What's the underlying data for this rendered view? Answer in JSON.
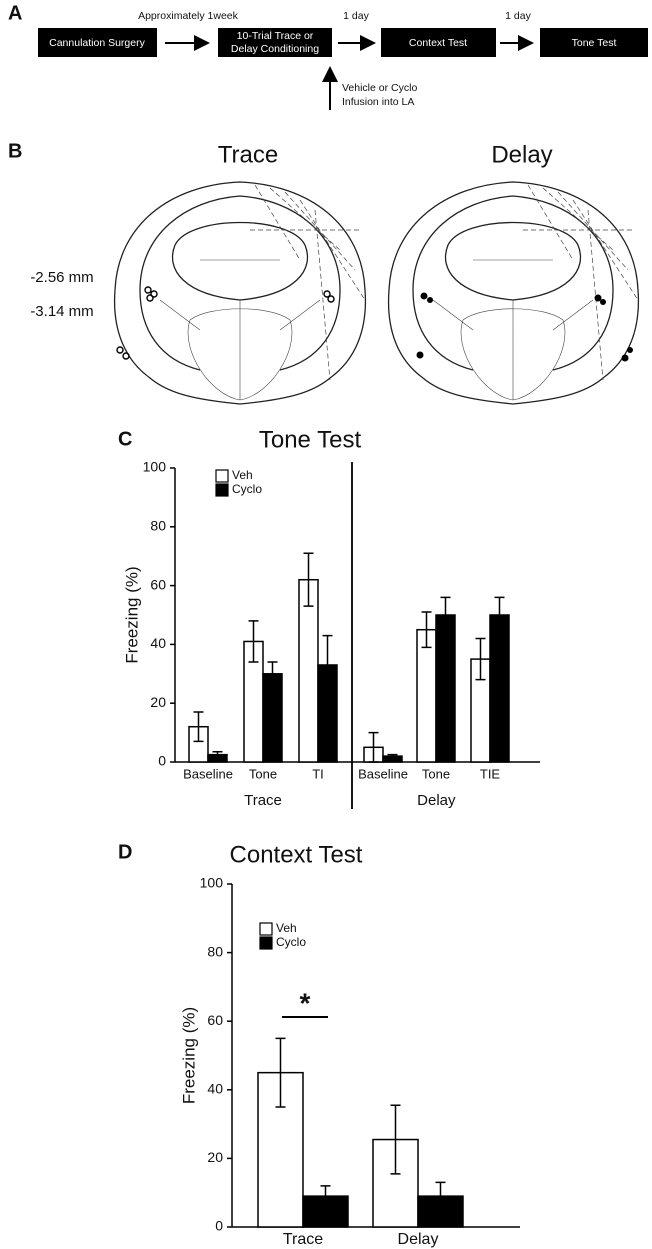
{
  "panel_labels": [
    "A",
    "B",
    "C",
    "D"
  ],
  "timeline": {
    "boxes": [
      "Cannulation Surgery",
      "10-Trial Trace or",
      "Delay Conditioning",
      "Context Test",
      "Tone Test"
    ],
    "intervals": [
      "Approximately 1week",
      "1 day",
      "1 day"
    ],
    "infusion": [
      "Vehicle or Cyclo",
      "Infusion into LA"
    ]
  },
  "brain_sections": {
    "titles": [
      "Trace",
      "Delay"
    ],
    "levels": [
      "-2.56 mm",
      "-3.14 mm"
    ]
  },
  "chart_data": [
    {
      "type": "bar",
      "title": "Tone Test",
      "y_label": "Freezing (%)",
      "categories": [
        "Baseline",
        "Tone",
        "TI",
        "Baseline",
        "Tone",
        "TIE"
      ],
      "groups": [
        "Trace",
        "Trace",
        "Trace",
        "Delay",
        "Delay",
        "Delay"
      ],
      "series": [
        {
          "name": "Veh",
          "color": "#ffffff",
          "values": [
            12,
            41,
            62,
            5,
            45,
            35
          ],
          "errors": [
            5,
            7,
            9,
            5,
            6,
            7
          ]
        },
        {
          "name": "Cyclo",
          "color": "#000000",
          "values": [
            2.5,
            30,
            33,
            2,
            50,
            50
          ],
          "errors": [
            1,
            4,
            10,
            0.5,
            6,
            6
          ]
        }
      ],
      "ylim": [
        0,
        100
      ],
      "yticks": [
        0,
        20,
        40,
        60,
        80,
        100
      ],
      "legend": "upper left"
    },
    {
      "type": "bar",
      "title": "Context Test",
      "y_label": "Freezing (%)",
      "categories": [
        "Trace",
        "Delay"
      ],
      "series": [
        {
          "name": "Veh",
          "color": "#ffffff",
          "values": [
            45,
            25.5
          ],
          "errors": [
            10,
            10
          ]
        },
        {
          "name": "Cyclo",
          "color": "#000000",
          "values": [
            9,
            9
          ],
          "errors": [
            3,
            4
          ]
        }
      ],
      "annotation": "*",
      "ylim": [
        0,
        100
      ],
      "yticks": [
        0,
        20,
        40,
        60,
        80,
        100
      ],
      "legend": "upper left"
    }
  ]
}
